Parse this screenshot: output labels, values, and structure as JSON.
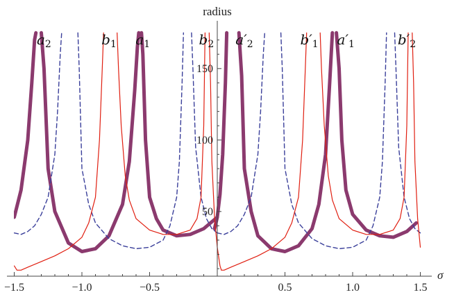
{
  "chart_data": {
    "type": "line",
    "xlabel": "σ",
    "ylabel": "radius",
    "xlim": [
      -1.55,
      1.52
    ],
    "ylim": [
      5,
      175
    ],
    "grid": false,
    "x_ticks": [
      {
        "value": -1.5,
        "label": "−1.5"
      },
      {
        "value": -1.0,
        "label": "−1.0"
      },
      {
        "value": -0.5,
        "label": "−0.5"
      },
      {
        "value": 0.5,
        "label": "0.5"
      },
      {
        "value": 1.0,
        "label": "1.0"
      },
      {
        "value": 1.5,
        "label": "1.5"
      }
    ],
    "y_ticks": [
      {
        "value": 50,
        "label": "50"
      },
      {
        "value": 100,
        "label": "100"
      },
      {
        "value": 150,
        "label": "150"
      }
    ],
    "curve_labels": [
      {
        "letter": "a",
        "sub": "2",
        "prime": "",
        "x": -1.28
      },
      {
        "letter": "b",
        "sub": "1",
        "prime": "",
        "x": -0.8
      },
      {
        "letter": "a",
        "sub": "1",
        "prime": "",
        "x": -0.55
      },
      {
        "letter": "b",
        "sub": "2",
        "prime": "",
        "x": -0.08
      },
      {
        "letter": "a",
        "sub": "2",
        "prime": "′",
        "x": 0.2
      },
      {
        "letter": "b",
        "sub": "1",
        "prime": "′",
        "x": 0.68
      },
      {
        "letter": "a",
        "sub": "1",
        "prime": "′",
        "x": 0.95
      },
      {
        "letter": "b",
        "sub": "2",
        "prime": "′",
        "x": 1.4
      }
    ],
    "series": [
      {
        "style": "thick",
        "color": "#8B3A6E",
        "segments": [
          {
            "x": [
              -1.5,
              -1.45,
              -1.4,
              -1.37,
              -1.35,
              -1.34
            ],
            "y": [
              46,
              65,
              100,
              140,
              170,
              175
            ]
          },
          {
            "x": [
              -1.3,
              -1.28,
              -1.25,
              -1.2,
              -1.1,
              -1.0,
              -0.9,
              -0.8,
              -0.7,
              -0.65,
              -0.61,
              -0.59,
              -0.58
            ],
            "y": [
              175,
              150,
              80,
              50,
              28,
              22,
              24,
              33,
              55,
              85,
              135,
              165,
              175
            ]
          },
          {
            "x": [
              -0.56,
              -0.55,
              -0.53,
              -0.5,
              -0.45,
              -0.4,
              -0.3,
              -0.2,
              -0.1,
              0.0
            ],
            "y": [
              175,
              160,
              100,
              60,
              45,
              37,
              33,
              34,
              38,
              46
            ]
          },
          {
            "x": [
              -0.02,
              0.0,
              0.02,
              0.04,
              0.06,
              0.07
            ],
            "y": [
              38,
              46,
              62,
              90,
              140,
              175
            ]
          },
          {
            "x": [
              0.16,
              0.18,
              0.2,
              0.25,
              0.3,
              0.4,
              0.5,
              0.6,
              0.7,
              0.75,
              0.8,
              0.83,
              0.85
            ],
            "y": [
              175,
              145,
              80,
              50,
              33,
              24,
              22,
              26,
              38,
              55,
              90,
              140,
              175
            ]
          },
          {
            "x": [
              0.88,
              0.9,
              0.92,
              0.95,
              1.0,
              1.1,
              1.2,
              1.3,
              1.4,
              1.47
            ],
            "y": [
              175,
              150,
              100,
              65,
              48,
              37,
              33,
              32,
              36,
              42
            ]
          }
        ]
      },
      {
        "style": "dashed",
        "color": "#3A3F9A",
        "segments": [
          {
            "x": [
              -1.5,
              -1.45,
              -1.4,
              -1.35,
              -1.3,
              -1.25,
              -1.2,
              -1.18,
              -1.16,
              -1.15
            ],
            "y": [
              35,
              34,
              36,
              40,
              48,
              60,
              90,
              120,
              160,
              175
            ]
          },
          {
            "x": [
              -1.03,
              -1.02,
              -1.0,
              -0.95,
              -0.9,
              -0.8,
              -0.7,
              -0.6,
              -0.5,
              -0.4,
              -0.35,
              -0.3,
              -0.28,
              -0.26,
              -0.25
            ],
            "y": [
              175,
              150,
              80,
              55,
              42,
              31,
              26,
              24,
              25,
              30,
              40,
              60,
              85,
              140,
              175
            ]
          },
          {
            "x": [
              -0.19,
              -0.18,
              -0.16,
              -0.12,
              -0.08,
              -0.04,
              0.0
            ],
            "y": [
              175,
              150,
              95,
              60,
              45,
              38,
              35
            ]
          },
          {
            "x": [
              0.0,
              0.05,
              0.1,
              0.15,
              0.2,
              0.25,
              0.3,
              0.32,
              0.34,
              0.35
            ],
            "y": [
              35,
              34,
              36,
              40,
              48,
              60,
              90,
              120,
              160,
              175
            ]
          },
          {
            "x": [
              0.47,
              0.48,
              0.5,
              0.55,
              0.6,
              0.7,
              0.8,
              0.9,
              1.0,
              1.1,
              1.15,
              1.2,
              1.22,
              1.24,
              1.25
            ],
            "y": [
              175,
              150,
              80,
              55,
              42,
              31,
              26,
              24,
              25,
              30,
              40,
              60,
              85,
              140,
              175
            ]
          },
          {
            "x": [
              1.31,
              1.32,
              1.34,
              1.38,
              1.42,
              1.46,
              1.5
            ],
            "y": [
              175,
              150,
              95,
              60,
              45,
              38,
              35
            ]
          }
        ]
      },
      {
        "style": "thin",
        "color": "#E01E10",
        "segments": [
          {
            "x": [
              -1.5,
              -1.48,
              -1.45,
              -1.4,
              -1.3,
              -1.2,
              -1.1,
              -1.0,
              -0.95,
              -0.9,
              -0.87,
              -0.85,
              -0.84
            ],
            "y": [
              12,
              9,
              9,
              11,
              15,
              19,
              24,
              32,
              42,
              60,
              100,
              150,
              175
            ]
          },
          {
            "x": [
              -0.74,
              -0.73,
              -0.71,
              -0.68,
              -0.65,
              -0.6,
              -0.5,
              -0.4,
              -0.3,
              -0.2,
              -0.15,
              -0.12,
              -0.1,
              -0.09
            ],
            "y": [
              175,
              150,
              110,
              75,
              58,
              45,
              37,
              34,
              34,
              37,
              45,
              60,
              110,
              175
            ]
          },
          {
            "x": [
              -0.06,
              -0.05,
              -0.04,
              -0.02,
              0.0,
              0.02,
              0.03
            ],
            "y": [
              175,
              140,
              85,
              45,
              25,
              12,
              9
            ]
          },
          {
            "x": [
              0.03,
              0.05,
              0.1,
              0.2,
              0.3,
              0.4,
              0.5,
              0.55,
              0.6,
              0.63,
              0.65,
              0.66
            ],
            "y": [
              9,
              9,
              11,
              15,
              19,
              24,
              32,
              42,
              60,
              100,
              150,
              175
            ]
          },
          {
            "x": [
              0.76,
              0.77,
              0.79,
              0.82,
              0.85,
              0.9,
              1.0,
              1.1,
              1.2,
              1.3,
              1.35,
              1.38,
              1.4,
              1.41
            ],
            "y": [
              175,
              150,
              110,
              75,
              58,
              45,
              37,
              34,
              34,
              37,
              45,
              60,
              110,
              175
            ]
          },
          {
            "x": [
              1.44,
              1.45,
              1.46,
              1.48,
              1.5
            ],
            "y": [
              175,
              140,
              85,
              45,
              25
            ]
          }
        ]
      }
    ]
  }
}
